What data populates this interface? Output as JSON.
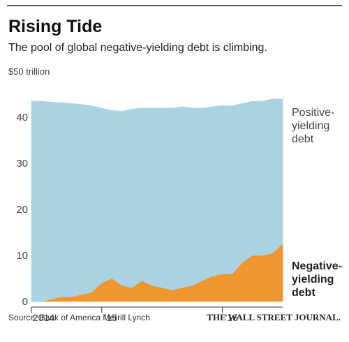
{
  "chart_data": {
    "type": "stacked_area",
    "title": "Rising Tide",
    "subtitle": "The pool of global negative-yielding debt is climbing.",
    "source": "Source: Bank of America Merrill Lynch",
    "credit": "THE WALL STREET JOURNAL.",
    "categories": [
      "2014",
      null,
      null,
      null,
      null,
      null,
      null,
      "'15",
      null,
      null,
      null,
      null,
      null,
      null,
      null,
      null,
      null,
      null,
      null,
      "'16",
      null,
      null,
      null,
      null,
      null,
      null
    ],
    "series": [
      {
        "name": "Negative-yielding debt",
        "color": "#f0962e",
        "values": [
          0,
          0,
          0.5,
          1,
          1,
          1.5,
          2,
          4,
          5,
          3.5,
          3,
          4.5,
          3.5,
          3,
          2.5,
          3,
          3.5,
          4.5,
          5.5,
          6,
          6,
          8.5,
          10,
          10,
          10.5,
          12.5
        ]
      },
      {
        "name": "Positive-yielding debt",
        "color": "#a9d3e2",
        "values": [
          43.5,
          43.5,
          42.8,
          42.2,
          42,
          41.3,
          40.5,
          38,
          36.5,
          37.8,
          38.8,
          37.5,
          38.5,
          39,
          39.5,
          39.3,
          38.5,
          37.5,
          36.8,
          36.5,
          36.5,
          34.5,
          33.5,
          33.5,
          33.5,
          31.5
        ]
      }
    ],
    "ylim": [
      0,
      50
    ],
    "yticks": [
      0,
      10,
      20,
      30,
      40,
      {
        "value": 50,
        "label": "$50 trillion"
      }
    ]
  }
}
